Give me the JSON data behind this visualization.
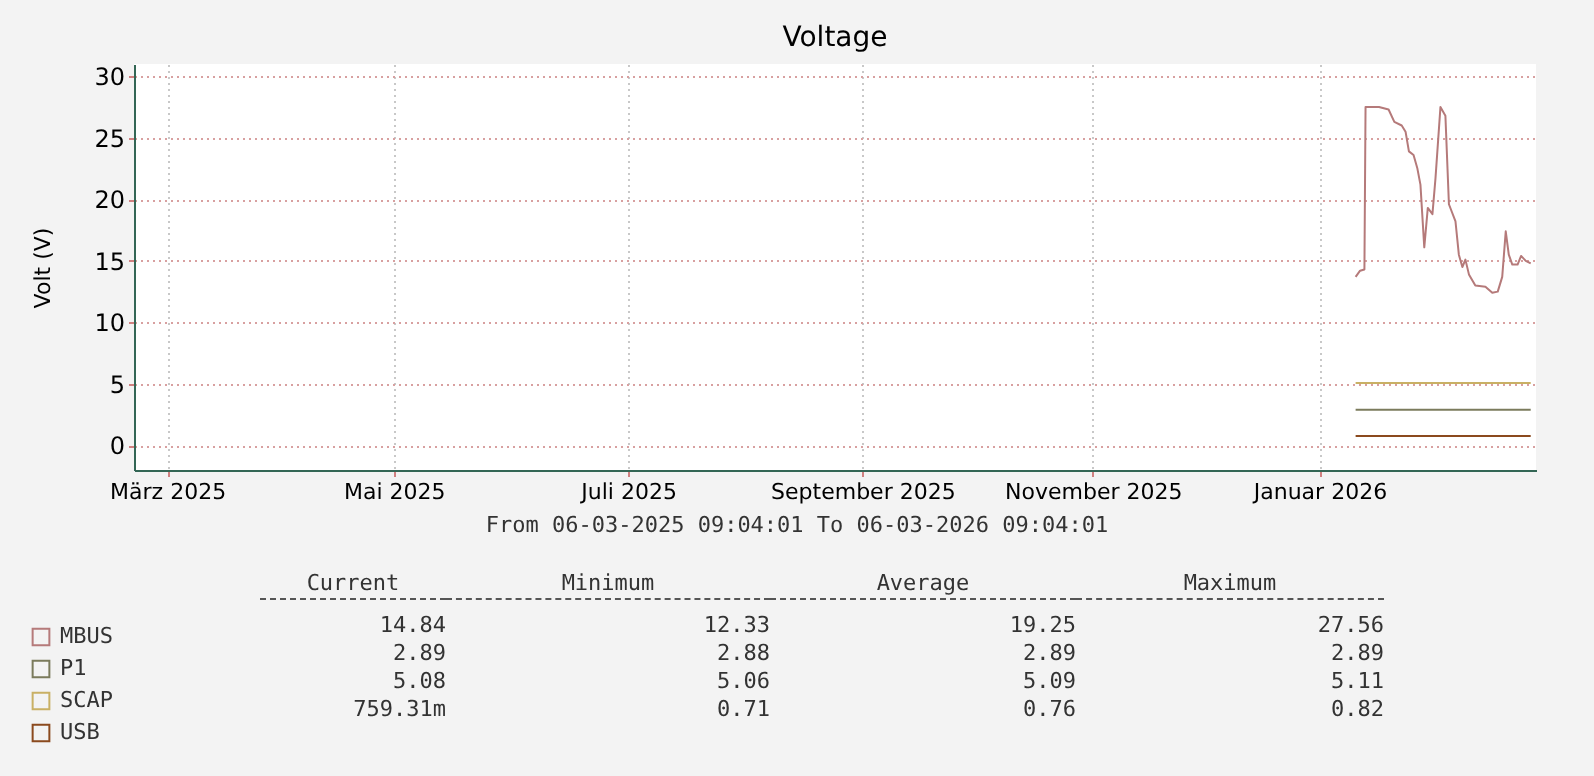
{
  "chart_data": {
    "type": "line",
    "title": "Voltage",
    "ylabel": "Volt (V)",
    "xlim": [
      "2025-03-06T09:04",
      "2026-03-06T09:04"
    ],
    "xticks": [
      {
        "value": "2025-03-15",
        "label": "März 2025"
      },
      {
        "value": "2025-05-13",
        "label": "Mai 2025"
      },
      {
        "value": "2025-07-13",
        "label": "Juli 2025"
      },
      {
        "value": "2025-09-12",
        "label": "September 2025"
      },
      {
        "value": "2025-11-11",
        "label": "November 2025"
      },
      {
        "value": "2026-01-09",
        "label": "Januar 2026"
      }
    ],
    "ylim": [
      -2,
      31
    ],
    "yticks": [
      0,
      5,
      10,
      15,
      20,
      25,
      30
    ],
    "grid": true,
    "legend": "bottom left",
    "series": [
      {
        "name": "MBUS",
        "color": "#b57a7a",
        "x": [
          "2026-01-18T10:00",
          "2026-01-19T14:00",
          "2026-01-20T17:00",
          "2026-01-21",
          "2026-01-24T12:00",
          "2026-01-27",
          "2026-01-28T12:00",
          "2026-01-30T10:00",
          "2026-01-31T10:00",
          "2026-02-01T07:00",
          "2026-02-02T12:00",
          "2026-02-03T12:00",
          "2026-02-04T07:00",
          "2026-02-05T07:00",
          "2026-02-06T05:00",
          "2026-02-07T10:00",
          "2026-02-08T05:00",
          "2026-02-09T12:00",
          "2026-02-10T19:00",
          "2026-02-11T17:00",
          "2026-02-13T10:00",
          "2026-02-14T07:00",
          "2026-02-15T05:00",
          "2026-02-16",
          "2026-02-16T22:00",
          "2026-02-18T14:00",
          "2026-02-21T05:00",
          "2026-02-23",
          "2026-02-24T10:00",
          "2026-02-25T14:00",
          "2026-02-26T12:00",
          "2026-02-27T07:00",
          "2026-02-28T05:00",
          "2026-03-01T14:00",
          "2026-03-02T12:00",
          "2026-03-03T17:00",
          "2026-03-05"
        ],
        "values": [
          13.7,
          14.2,
          14.3,
          27.5,
          27.5,
          27.3,
          26.3,
          26.0,
          25.5,
          23.9,
          23.6,
          22.5,
          21.2,
          16.1,
          19.3,
          18.8,
          21.7,
          27.5,
          26.8,
          19.6,
          18.2,
          15.5,
          14.5,
          15.1,
          13.9,
          13.0,
          12.9,
          12.4,
          12.5,
          13.7,
          17.4,
          15.5,
          14.7,
          14.7,
          15.4,
          15.0,
          14.8
        ]
      },
      {
        "name": "P1",
        "color": "#7b7b5c",
        "x": [
          "2026-01-18T10:00",
          "2026-03-05"
        ],
        "values": [
          2.89,
          2.89
        ]
      },
      {
        "name": "SCAP",
        "color": "#c9b064",
        "x": [
          "2026-01-18T10:00",
          "2026-03-05"
        ],
        "values": [
          5.08,
          5.08
        ]
      },
      {
        "name": "USB",
        "color": "#8b4a1e",
        "x": [
          "2026-01-18T10:00",
          "2026-03-05"
        ],
        "values": [
          0.76,
          0.76
        ]
      }
    ],
    "annotations": [
      "From 06-03-2025 09:04:01 To 06-03-2026 09:04:01",
      "Current",
      "Minimum",
      "Average",
      "Maximum",
      "14.84",
      "12.33",
      "19.25",
      "27.56",
      "2.89",
      "2.88",
      "2.89",
      "2.89",
      "5.08",
      "5.06",
      "5.09",
      "5.11",
      "759.31m",
      "0.71",
      "0.76",
      "0.82"
    ]
  }
}
